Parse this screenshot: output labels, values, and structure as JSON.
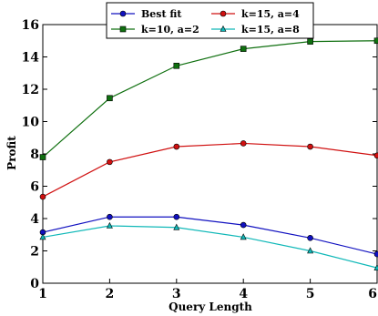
{
  "chart_data": {
    "type": "line",
    "xlabel": "Query Length",
    "ylabel": "Profit",
    "x": [
      1,
      2,
      3,
      4,
      5,
      6
    ],
    "xlim": [
      1,
      6
    ],
    "ylim": [
      0,
      16
    ],
    "xticks": [
      1,
      2,
      3,
      4,
      5,
      6
    ],
    "yticks": [
      0,
      2,
      4,
      6,
      8,
      10,
      12,
      14,
      16
    ],
    "grid": false,
    "legend_position": "top-center",
    "series": [
      {
        "name": "Best fit",
        "color": "#1010c0",
        "marker": "circle",
        "values": [
          3.15,
          4.1,
          4.1,
          3.6,
          2.8,
          1.8
        ]
      },
      {
        "name": "k=15, a=4",
        "color": "#d01010",
        "marker": "circle",
        "values": [
          5.35,
          7.5,
          8.45,
          8.65,
          8.45,
          7.9
        ]
      },
      {
        "name": "k=10, a=2",
        "color": "#107010",
        "marker": "square",
        "values": [
          7.8,
          11.45,
          13.45,
          14.5,
          14.95,
          15.0
        ]
      },
      {
        "name": "k=15, a=8",
        "color": "#10b8b8",
        "marker": "triangle",
        "values": [
          2.85,
          3.55,
          3.45,
          2.85,
          2.0,
          0.95
        ]
      }
    ]
  }
}
